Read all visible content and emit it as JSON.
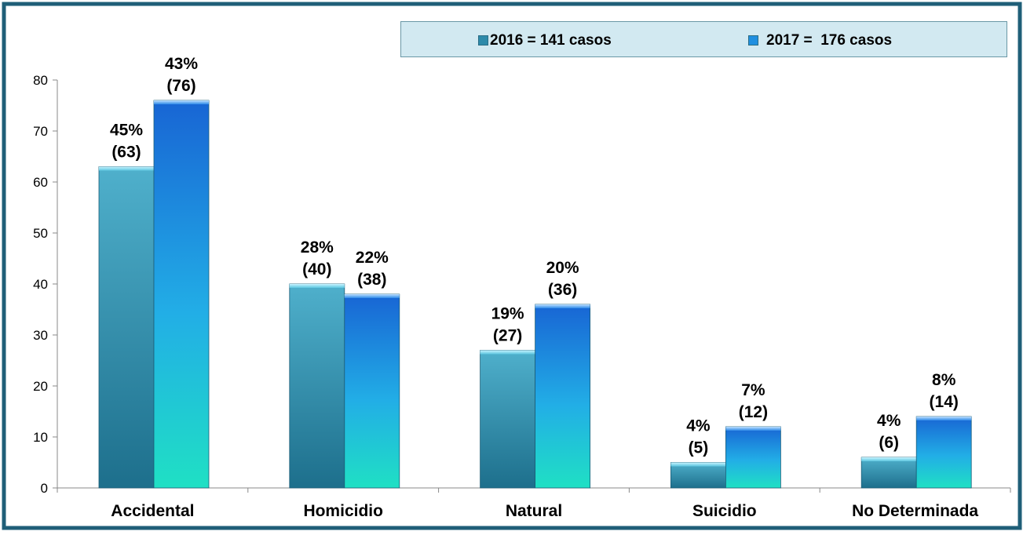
{
  "chart_data": {
    "type": "bar",
    "categories": [
      "Accidental",
      "Homicidio",
      "Natural",
      "Suicidio",
      "No Determinada"
    ],
    "series": [
      {
        "name": "2016 = 141 casos",
        "values": [
          63,
          40,
          27,
          5,
          6
        ],
        "labels": [
          [
            "45%",
            "(63)"
          ],
          [
            "28%",
            "(40)"
          ],
          [
            "19%",
            "(27)"
          ],
          [
            "4%",
            "(5)"
          ],
          [
            "4%",
            "(6)"
          ]
        ],
        "color_top": "#48a8c6",
        "color_bottom": "#1f6f8e"
      },
      {
        "name": "2017 =  176 casos",
        "values": [
          76,
          38,
          36,
          12,
          14
        ],
        "labels": [
          [
            "43%",
            "(76)"
          ],
          [
            "22%",
            "(38)"
          ],
          [
            "20%",
            "(36)"
          ],
          [
            "7%",
            "(12)"
          ],
          [
            "8%",
            "(14)"
          ]
        ],
        "color_top": "#1a6fd8",
        "color_bottom": "#20e0c8"
      }
    ],
    "ylim": [
      0,
      80
    ],
    "yticks": [
      "0",
      "10",
      "20",
      "30",
      "40",
      "50",
      "60",
      "70",
      "80"
    ],
    "legend_position": "top-right",
    "grid": false
  },
  "colors": {
    "frame_border": "#1f5f78",
    "legend_bg": "#d2e9f1"
  }
}
